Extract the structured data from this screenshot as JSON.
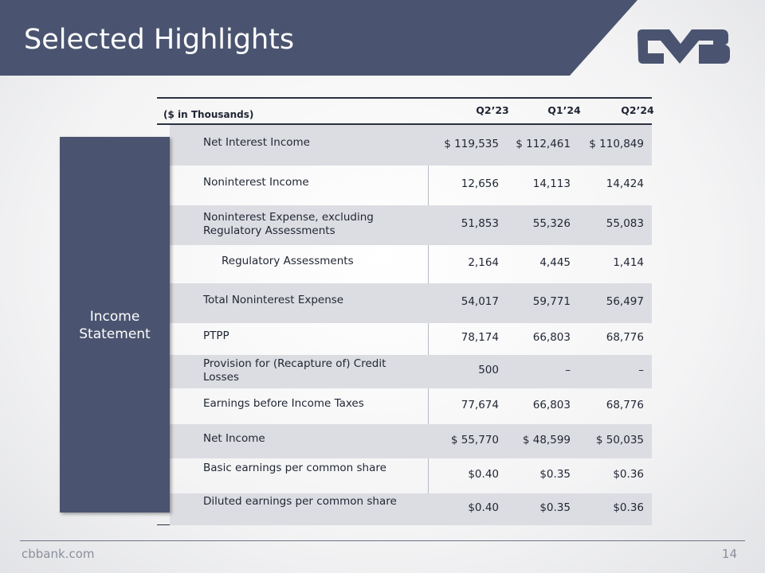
{
  "header": {
    "title": "Selected Highlights"
  },
  "table": {
    "unit": "($ in Thousands)",
    "columns": [
      "Q2’23",
      "Q1’24",
      "Q2’24"
    ],
    "section": "Income Statement",
    "rows": [
      {
        "label": "Net Interest Income",
        "cells": [
          "$ 119,535",
          "$ 112,461",
          "$ 110,849"
        ]
      },
      {
        "label": "Noninterest Income",
        "cells": [
          "12,656",
          "14,113",
          "14,424"
        ]
      },
      {
        "label": "Noninterest Expense, excluding Regulatory Assessments",
        "cells": [
          "51,853",
          "55,326",
          "55,083"
        ]
      },
      {
        "label": "Regulatory Assessments",
        "cells": [
          "2,164",
          "4,445",
          "1,414"
        ]
      },
      {
        "label": "Total Noninterest Expense",
        "cells": [
          "54,017",
          "59,771",
          "56,497"
        ]
      },
      {
        "label": "PTPP",
        "cells": [
          "78,174",
          "66,803",
          "68,776"
        ]
      },
      {
        "label": "Provision for (Recapture of) Credit Losses",
        "cells": [
          "500",
          "–",
          "–"
        ]
      },
      {
        "label": "Earnings before Income Taxes",
        "cells": [
          "77,674",
          "66,803",
          "68,776"
        ]
      },
      {
        "label": "Net Income",
        "cells": [
          "$ 55,770",
          "$ 48,599",
          "$ 50,035"
        ]
      },
      {
        "label": "Basic earnings per common share",
        "cells": [
          "$0.40",
          "$0.35",
          "$0.36"
        ]
      },
      {
        "label": "Diluted earnings per common share",
        "cells": [
          "$0.40",
          "$0.35",
          "$0.36"
        ]
      }
    ]
  },
  "footer": {
    "site": "cbbank.com",
    "page": "14"
  }
}
